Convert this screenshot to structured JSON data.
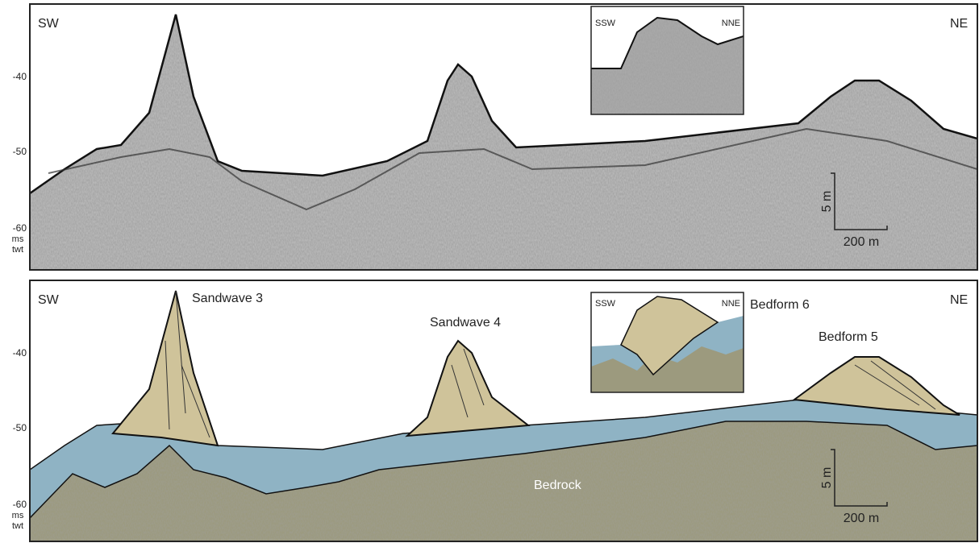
{
  "panels": [
    {
      "direction_left": "SW",
      "direction_right": "NE",
      "depth_ticks": [
        "-40",
        "-50",
        "-60"
      ],
      "depth_unit": [
        "ms",
        "twt"
      ],
      "inset": {
        "left": "SSW",
        "right": "NNE"
      },
      "scale": {
        "vertical": "5 m",
        "horizontal": "200 m"
      }
    },
    {
      "direction_left": "SW",
      "direction_right": "NE",
      "depth_ticks": [
        "-40",
        "-50",
        "-60"
      ],
      "depth_unit": [
        "ms",
        "twt"
      ],
      "inset": {
        "left": "SSW",
        "right": "NNE"
      },
      "scale": {
        "vertical": "5 m",
        "horizontal": "200 m"
      },
      "labels": [
        "Sandwave 3",
        "Sandwave 4",
        "Bedform 6",
        "Bedform 5",
        "Bedrock"
      ]
    }
  ]
}
